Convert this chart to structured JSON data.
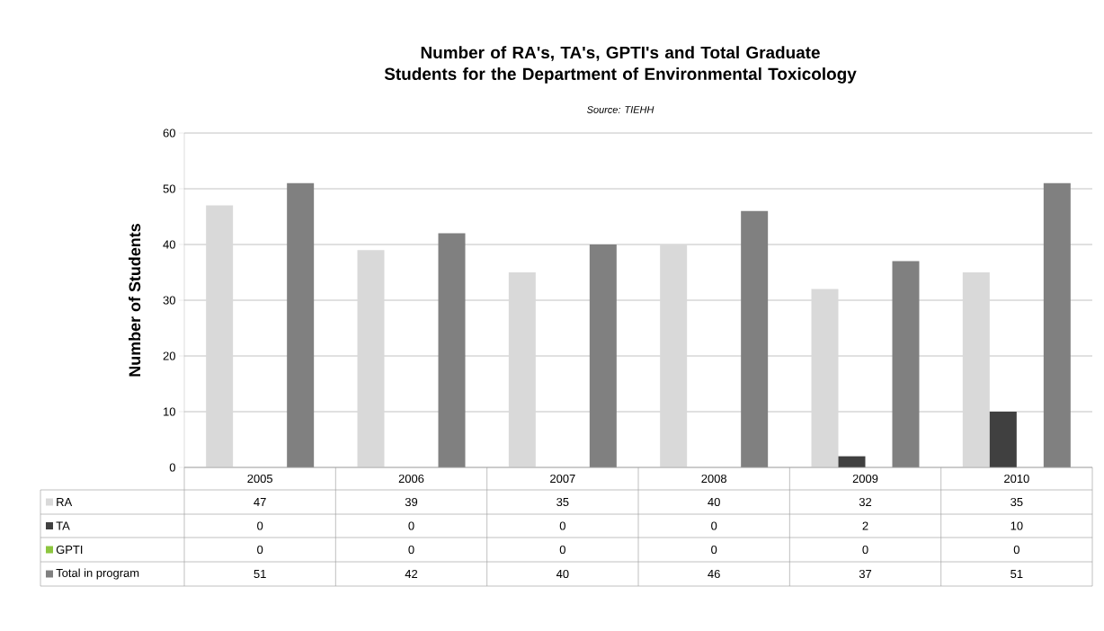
{
  "chart_data": {
    "type": "bar",
    "title": "Number of RA's, TA's, GPTI's and Total Graduate Students for the Department of Environmental Toxicology",
    "annotations": [
      "Source: TIEHH"
    ],
    "ylabel": "Number of Students",
    "categories": [
      "2005",
      "2006",
      "2007",
      "2008",
      "2009",
      "2010"
    ],
    "series": [
      {
        "name": "RA",
        "color": "#d9d9d9",
        "values": [
          47,
          39,
          35,
          40,
          32,
          35
        ]
      },
      {
        "name": "TA",
        "color": "#404040",
        "values": [
          0,
          0,
          0,
          0,
          2,
          10
        ]
      },
      {
        "name": "GPTI",
        "color": "#8dc63f",
        "values": [
          0,
          0,
          0,
          0,
          0,
          0
        ]
      },
      {
        "name": "Total in program",
        "color": "#808080",
        "values": [
          51,
          42,
          40,
          46,
          37,
          51
        ]
      }
    ],
    "ylim": [
      0,
      60
    ],
    "yticks": [
      0,
      10,
      20,
      30,
      40,
      50,
      60
    ],
    "grid": "y",
    "legend": "bottom",
    "data_labels": true
  }
}
